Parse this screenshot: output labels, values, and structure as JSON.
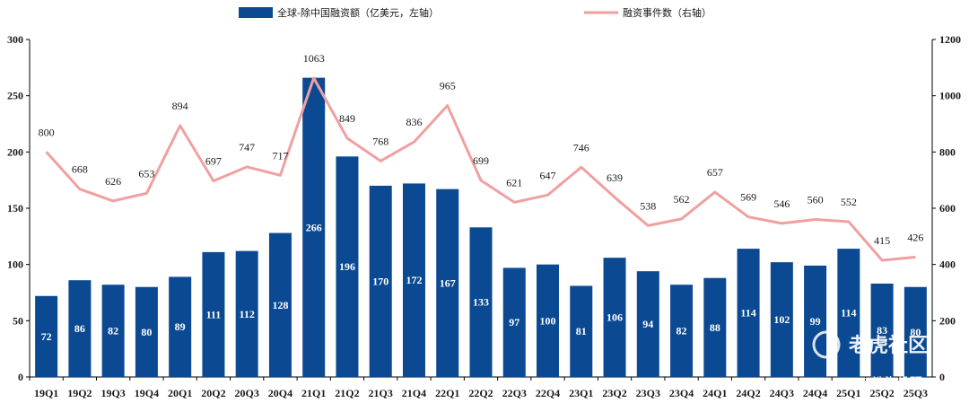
{
  "chart_data": {
    "type": "bar+line",
    "categories": [
      "19Q1",
      "19Q2",
      "19Q3",
      "19Q4",
      "20Q1",
      "20Q2",
      "20Q3",
      "20Q4",
      "21Q1",
      "21Q2",
      "21Q3",
      "21Q4",
      "22Q1",
      "22Q2",
      "22Q3",
      "22Q4",
      "23Q1",
      "23Q2",
      "23Q3",
      "23Q4",
      "24Q1",
      "24Q2",
      "24Q3",
      "24Q4",
      "25Q1",
      "25Q2",
      "25Q3"
    ],
    "series": [
      {
        "name": "全球-除中国融资额（亿美元，左轴）",
        "type": "bar",
        "axis": "left",
        "color": "#0b4a93",
        "values": [
          72,
          86,
          82,
          80,
          89,
          111,
          112,
          128,
          266,
          196,
          170,
          172,
          167,
          133,
          97,
          100,
          81,
          106,
          94,
          82,
          88,
          114,
          102,
          99,
          114,
          83,
          80
        ]
      },
      {
        "name": "融资事件数（右轴）",
        "type": "line",
        "axis": "right",
        "color": "#f0a0a0",
        "values": [
          800,
          668,
          626,
          653,
          894,
          697,
          747,
          717,
          1063,
          849,
          768,
          836,
          965,
          699,
          621,
          647,
          746,
          639,
          538,
          562,
          657,
          569,
          546,
          560,
          552,
          415,
          426
        ]
      }
    ],
    "left_axis": {
      "ylim": [
        0,
        300
      ],
      "ticks": [
        0,
        50,
        100,
        150,
        200,
        250,
        300
      ]
    },
    "right_axis": {
      "ylim": [
        0,
        1200
      ],
      "ticks": [
        0,
        200,
        400,
        600,
        800,
        1000,
        1200
      ]
    },
    "legend_position": "top-center"
  },
  "watermark": {
    "logo_text": "老虎社区",
    "handle_text": "@浩海投研"
  }
}
